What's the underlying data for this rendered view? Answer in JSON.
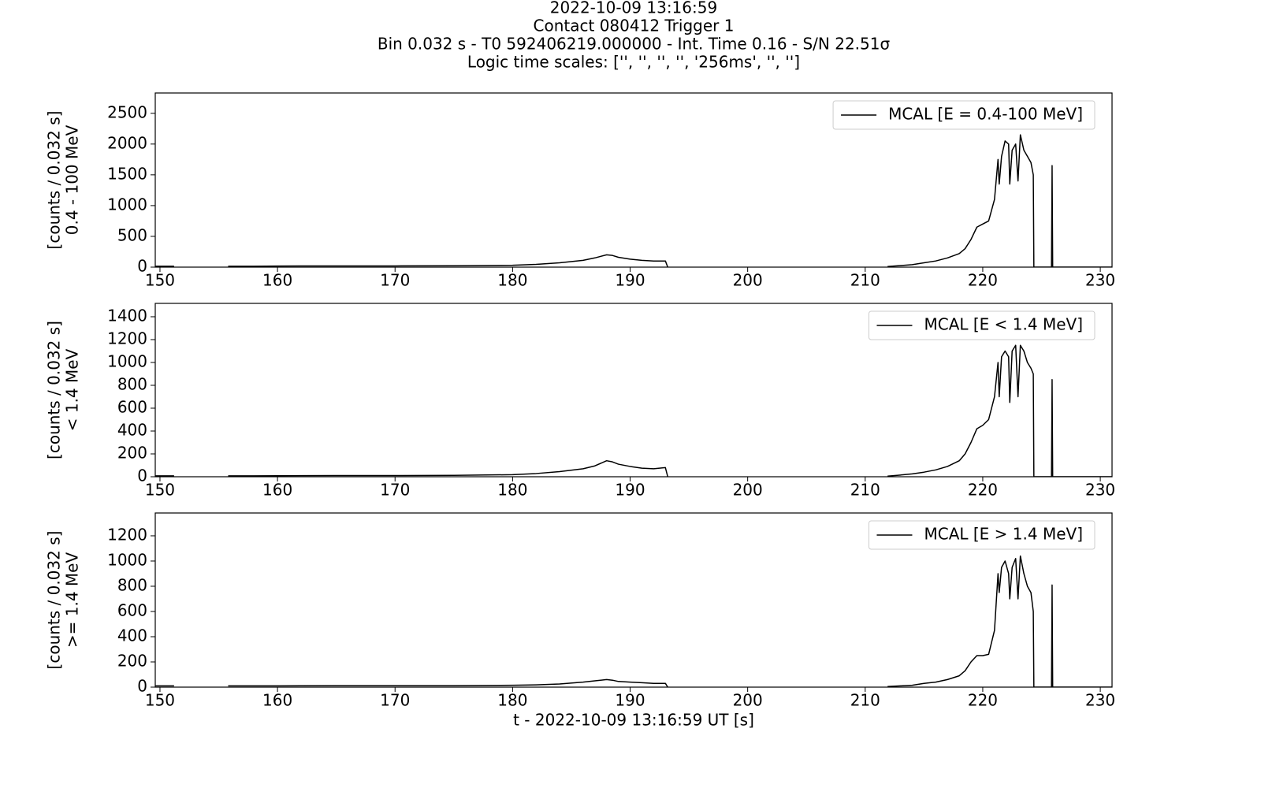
{
  "figure": {
    "title": [
      "2022-10-09 13:16:59",
      "Contact 080412   Trigger 1",
      "Bin 0.032 s - T0 592406219.000000 - Int. Time 0.16 - S/N 22.51σ",
      "Logic time scales: ['', '', '', '', '256ms', '', '']"
    ]
  },
  "chart_data": [
    {
      "type": "line",
      "ylabel": [
        "[counts / 0.032 s]",
        "0.4 - 100 MeV"
      ],
      "legend": "upper right",
      "xlim": [
        149.6,
        231
      ],
      "xticks": [
        150,
        160,
        170,
        180,
        190,
        200,
        210,
        220,
        230
      ],
      "ylim": [
        0,
        2830
      ],
      "yticks": [
        0,
        500,
        1000,
        1500,
        2000,
        2500
      ],
      "x": [
        149.6,
        150.5,
        151.2,
        153,
        155.8,
        158,
        160,
        165,
        170,
        175,
        180,
        182,
        184,
        186,
        187,
        188,
        188.5,
        189,
        190,
        191,
        192,
        193,
        193.2,
        200,
        211.9,
        213,
        214,
        215,
        216,
        217,
        218,
        218.5,
        219,
        219.5,
        220,
        220.5,
        221,
        221.3,
        221.4,
        221.6,
        221.9,
        222.2,
        222.3,
        222.5,
        222.8,
        223.0,
        223.2,
        223.5,
        223.8,
        224.1,
        224.3,
        224.35,
        225.85,
        225.9,
        225.95,
        231
      ],
      "series": [
        {
          "name": "MCAL [E = 0.4-100 MeV]",
          "color": "#000000",
          "values": [
            15,
            15,
            15,
            null,
            15,
            15,
            18,
            20,
            20,
            22,
            30,
            45,
            70,
            110,
            150,
            200,
            190,
            160,
            130,
            110,
            100,
            100,
            0,
            null,
            10,
            25,
            40,
            70,
            100,
            150,
            220,
            300,
            450,
            650,
            700,
            750,
            1100,
            1750,
            1350,
            1800,
            2050,
            2000,
            1350,
            1900,
            2000,
            1400,
            2150,
            1900,
            1800,
            1700,
            1500,
            0,
            0,
            1650,
            0,
            0
          ]
        }
      ]
    },
    {
      "type": "line",
      "ylabel": [
        "[counts / 0.032 s]",
        "< 1.4 MeV"
      ],
      "legend": "upper right",
      "xlim": [
        149.6,
        231
      ],
      "xticks": [
        150,
        160,
        170,
        180,
        190,
        200,
        210,
        220,
        230
      ],
      "ylim": [
        0,
        1517
      ],
      "yticks": [
        0,
        200,
        400,
        600,
        800,
        1000,
        1200,
        1400
      ],
      "x": [
        149.6,
        150.5,
        151.2,
        153,
        155.8,
        158,
        160,
        165,
        170,
        175,
        180,
        182,
        184,
        186,
        187,
        188,
        188.5,
        189,
        190,
        191,
        192,
        193,
        193.2,
        200,
        211.9,
        213,
        214,
        215,
        216,
        217,
        218,
        218.5,
        219,
        219.5,
        220,
        220.5,
        221,
        221.3,
        221.4,
        221.6,
        221.9,
        222.2,
        222.3,
        222.5,
        222.8,
        223.0,
        223.2,
        223.5,
        223.8,
        224.1,
        224.3,
        224.35,
        225.85,
        225.9,
        225.95,
        231
      ],
      "series": [
        {
          "name": "MCAL [E < 1.4 MeV]",
          "color": "#000000",
          "values": [
            8,
            8,
            8,
            null,
            8,
            8,
            9,
            10,
            10,
            12,
            18,
            28,
            45,
            70,
            95,
            140,
            130,
            110,
            90,
            75,
            70,
            80,
            0,
            null,
            5,
            15,
            25,
            40,
            60,
            90,
            140,
            200,
            300,
            420,
            450,
            500,
            700,
            1000,
            700,
            1050,
            1100,
            1050,
            650,
            1100,
            1150,
            700,
            1150,
            1100,
            1000,
            950,
            900,
            0,
            0,
            850,
            0,
            0
          ]
        }
      ]
    },
    {
      "type": "line",
      "ylabel": [
        "[counts / 0.032 s]",
        ">= 1.4 MeV"
      ],
      "xlabel": "t - 2022-10-09 13:16:59 UT [s]",
      "legend": "upper right",
      "xlim": [
        149.6,
        231
      ],
      "xticks": [
        150,
        160,
        170,
        180,
        190,
        200,
        210,
        220,
        230
      ],
      "ylim": [
        0,
        1381
      ],
      "yticks": [
        0,
        200,
        400,
        600,
        800,
        1000,
        1200
      ],
      "x": [
        149.6,
        150.5,
        151.2,
        153,
        155.8,
        158,
        160,
        165,
        170,
        175,
        180,
        182,
        184,
        186,
        187,
        188,
        188.5,
        189,
        190,
        191,
        192,
        193,
        193.2,
        200,
        211.9,
        213,
        214,
        215,
        216,
        217,
        218,
        218.5,
        219,
        219.5,
        220,
        220.5,
        221,
        221.3,
        221.4,
        221.6,
        221.9,
        222.2,
        222.3,
        222.5,
        222.8,
        223.0,
        223.2,
        223.5,
        223.8,
        224.1,
        224.3,
        224.35,
        225.85,
        225.9,
        225.95,
        231
      ],
      "series": [
        {
          "name": "MCAL [E > 1.4 MeV]",
          "color": "#000000",
          "values": [
            10,
            10,
            10,
            null,
            10,
            10,
            10,
            12,
            12,
            12,
            15,
            18,
            25,
            40,
            50,
            60,
            55,
            45,
            40,
            35,
            30,
            30,
            0,
            null,
            5,
            10,
            15,
            30,
            40,
            60,
            90,
            130,
            200,
            250,
            250,
            260,
            450,
            900,
            750,
            950,
            1000,
            900,
            700,
            950,
            1020,
            700,
            1040,
            900,
            800,
            750,
            600,
            0,
            0,
            810,
            0,
            0
          ]
        }
      ]
    }
  ]
}
